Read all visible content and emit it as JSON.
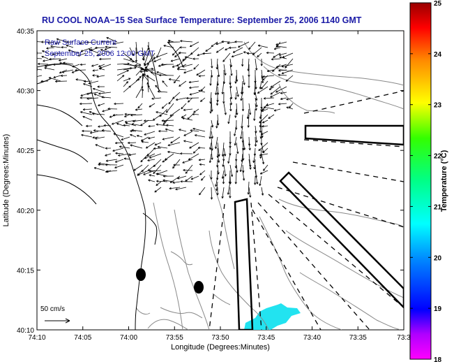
{
  "title": "RU COOL  NOAA−15  Sea Surface Temperature:  September 25, 2006 1140 GMT",
  "legend": {
    "line1": "Raw Surface Current",
    "line2": "September 25, 2006 12:00 GMT"
  },
  "scale_label": "50 cm/s",
  "x_axis": {
    "label": "Longitude (Degrees:Minutes)",
    "ticks": [
      "74:10",
      "74:05",
      "74:00",
      "73:55",
      "73:50",
      "73:45",
      "73:40",
      "73:35",
      "73:3"
    ]
  },
  "y_axis": {
    "label": "Latitude (Degrees:Minutes)",
    "ticks": [
      "40:35",
      "40:30",
      "40:25",
      "40:20",
      "40:15",
      "40:10"
    ]
  },
  "colorbar": {
    "label": "Temperature (°C)",
    "ticks": [
      "25",
      "24",
      "23",
      "22",
      "21",
      "20",
      "19",
      "18"
    ],
    "min": 18,
    "max": 25
  },
  "colors": {
    "title": "#1a1aa6",
    "sst_patch": "#22e3f0",
    "coastline": "#000000",
    "bathymetry": "#888888"
  }
}
